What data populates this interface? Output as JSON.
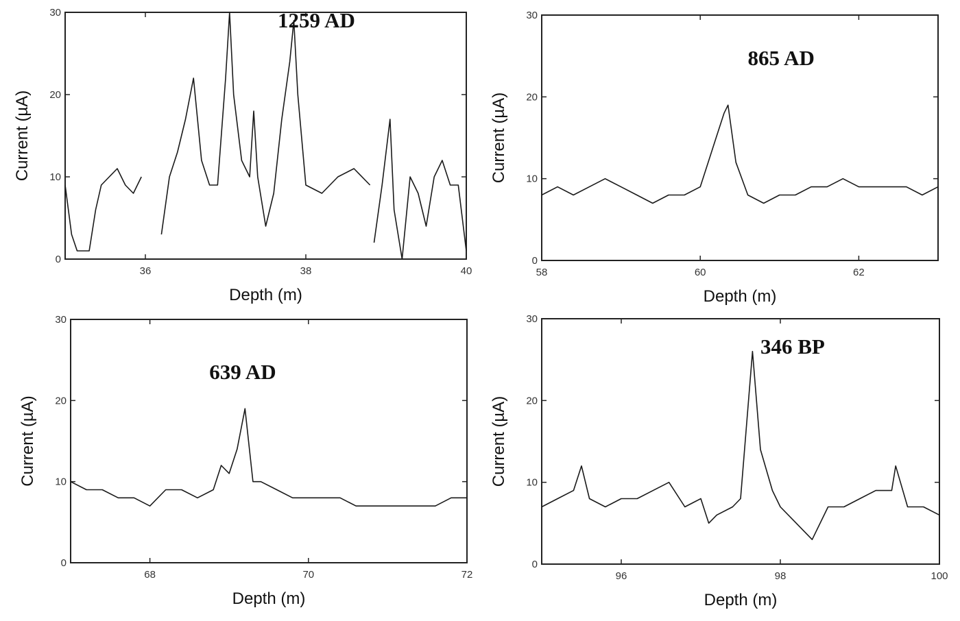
{
  "chart_data": [
    {
      "type": "line",
      "title": "",
      "annotation": "1259 AD",
      "xlabel": "Depth (m)",
      "ylabel": "Current (µA)",
      "xlim": [
        35,
        40
      ],
      "ylim": [
        0,
        30
      ],
      "xticks": [
        "36",
        "38",
        "40"
      ],
      "yticks": [
        "0",
        "10",
        "20",
        "30"
      ],
      "series": [
        {
          "x": [
            35.0,
            35.08,
            35.15,
            35.22,
            35.3,
            35.38,
            35.45,
            35.55,
            35.65,
            35.75,
            35.85,
            35.95
          ],
          "y": [
            9,
            3,
            1,
            1,
            1,
            6,
            9,
            10,
            11,
            9,
            8,
            10
          ]
        },
        {
          "x": [
            36.2,
            36.3,
            36.4,
            36.5,
            36.6,
            36.7,
            36.8,
            36.9,
            37.0,
            37.05,
            37.1,
            37.2,
            37.3,
            37.35,
            37.4,
            37.5,
            37.6,
            37.7,
            37.8,
            37.85,
            37.9,
            38.0,
            38.2,
            38.4,
            38.6,
            38.8
          ],
          "y": [
            3,
            10,
            13,
            17,
            22,
            12,
            9,
            9,
            22,
            30,
            20,
            12,
            10,
            18,
            10,
            4,
            8,
            17,
            24,
            29,
            20,
            9,
            8,
            10,
            11,
            9
          ]
        },
        {
          "x": [
            38.85,
            38.95,
            39.05,
            39.1,
            39.2,
            39.3,
            39.4,
            39.5,
            39.6,
            39.7,
            39.8,
            39.9,
            40.0
          ],
          "y": [
            2,
            9,
            17,
            6,
            0,
            10,
            8,
            4,
            10,
            12,
            9,
            9,
            1
          ]
        }
      ]
    },
    {
      "type": "line",
      "title": "",
      "annotation": "865 AD",
      "xlabel": "Depth (m)",
      "ylabel": "Current (µA)",
      "xlim": [
        58,
        63
      ],
      "ylim": [
        0,
        30
      ],
      "xticks": [
        "58",
        "60",
        "62"
      ],
      "yticks": [
        "0",
        "10",
        "20",
        "30"
      ],
      "series": [
        {
          "x": [
            58.0,
            58.2,
            58.4,
            58.6,
            58.8,
            59.0,
            59.2,
            59.4,
            59.6,
            59.8,
            60.0,
            60.1,
            60.2,
            60.3,
            60.35,
            60.45,
            60.6,
            60.8,
            61.0,
            61.2,
            61.4,
            61.6,
            61.8,
            62.0,
            62.2,
            62.4,
            62.6,
            62.8,
            63.0
          ],
          "y": [
            8,
            9,
            8,
            9,
            10,
            9,
            8,
            7,
            8,
            8,
            9,
            12,
            15,
            18,
            19,
            12,
            8,
            7,
            8,
            8,
            9,
            9,
            10,
            9,
            9,
            9,
            9,
            8,
            9
          ]
        }
      ]
    },
    {
      "type": "line",
      "title": "",
      "annotation": "639 AD",
      "xlabel": "Depth (m)",
      "ylabel": "Current (µA)",
      "xlim": [
        67,
        72
      ],
      "ylim": [
        0,
        30
      ],
      "xticks": [
        "68",
        "70",
        "72"
      ],
      "yticks": [
        "0",
        "10",
        "20",
        "30"
      ],
      "series": [
        {
          "x": [
            67.0,
            67.2,
            67.4,
            67.6,
            67.8,
            68.0,
            68.2,
            68.4,
            68.6,
            68.8,
            68.9,
            69.0,
            69.1,
            69.2,
            69.3,
            69.4,
            69.6,
            69.8,
            70.0,
            70.2,
            70.4,
            70.6,
            70.8,
            71.0,
            71.2,
            71.4,
            71.6,
            71.8,
            72.0
          ],
          "y": [
            10,
            9,
            9,
            8,
            8,
            7,
            9,
            9,
            8,
            9,
            12,
            11,
            14,
            19,
            10,
            10,
            9,
            8,
            8,
            8,
            8,
            7,
            7,
            7,
            7,
            7,
            7,
            8,
            8
          ]
        }
      ]
    },
    {
      "type": "line",
      "title": "",
      "annotation": "346 BP",
      "xlabel": "Depth (m)",
      "ylabel": "Current (µA)",
      "xlim": [
        95,
        100
      ],
      "ylim": [
        0,
        30
      ],
      "xticks": [
        "96",
        "98",
        "100"
      ],
      "yticks": [
        "0",
        "10",
        "20",
        "30"
      ],
      "series": [
        {
          "x": [
            95.0,
            95.2,
            95.4,
            95.5,
            95.6,
            95.8,
            96.0,
            96.2,
            96.4,
            96.6,
            96.8,
            97.0,
            97.1,
            97.2,
            97.4,
            97.5,
            97.6,
            97.65,
            97.75,
            97.9,
            98.0,
            98.2,
            98.4,
            98.6,
            98.8,
            99.0,
            99.2,
            99.4,
            99.45,
            99.6,
            99.8,
            100.0
          ],
          "y": [
            7,
            8,
            9,
            12,
            8,
            7,
            8,
            8,
            9,
            10,
            7,
            8,
            5,
            6,
            7,
            8,
            20,
            26,
            14,
            9,
            7,
            5,
            3,
            7,
            7,
            8,
            9,
            9,
            12,
            7,
            7,
            6
          ]
        }
      ]
    }
  ]
}
